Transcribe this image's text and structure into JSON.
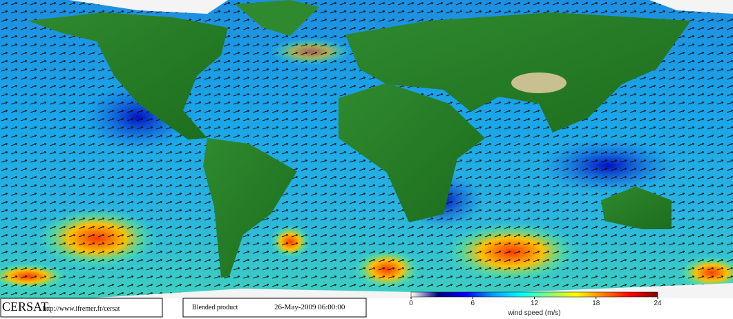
{
  "footer": {
    "logo": "CERSAT",
    "url": "http://www.ifremer.fr/cersat",
    "product": "Blended product",
    "date": "26-May-2009 06:00:00"
  },
  "colorbar": {
    "label": "wind speed (m/s)",
    "ticks": [
      0,
      6,
      12,
      18,
      24
    ],
    "colors": [
      "#ffffff",
      "#00007f",
      "#0000ff",
      "#00a0ff",
      "#00ffff",
      "#80ff80",
      "#ffff00",
      "#ff8000",
      "#ff0000",
      "#800000"
    ]
  }
}
